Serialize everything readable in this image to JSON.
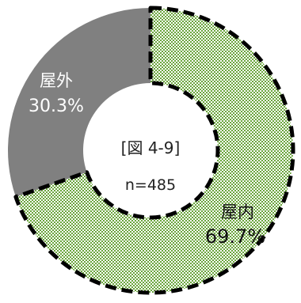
{
  "chart_data": {
    "type": "pie",
    "style": "donut",
    "figure_label": "[図 4-9]",
    "sample_size": "n=485",
    "slices": [
      {
        "name": "屋内",
        "value": 69.7,
        "label": "69.7%",
        "color": "#6aa53c",
        "pattern": "checkered",
        "border": "dashed"
      },
      {
        "name": "屋外",
        "value": 30.3,
        "label": "30.3%",
        "color": "#808080",
        "pattern": "solid",
        "border": "none"
      }
    ],
    "start_angle_deg": 0,
    "direction": "clockwise"
  }
}
